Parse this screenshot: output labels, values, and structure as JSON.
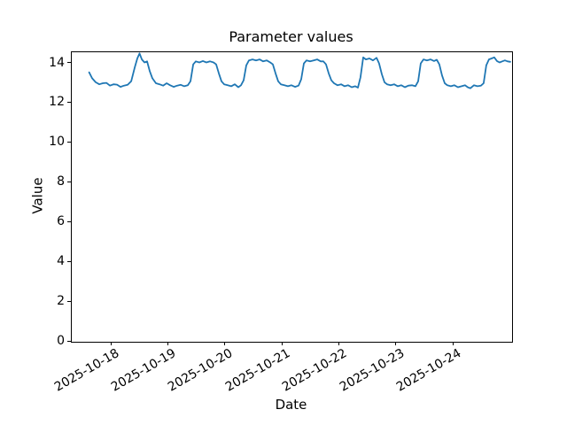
{
  "chart_data": {
    "type": "line",
    "title": "Parameter values",
    "xlabel": "Date",
    "ylabel": "Value",
    "grid": false,
    "legend": null,
    "line_color": "#1f77b4",
    "background_color": "#ffffff",
    "spine_color": "#000000",
    "x_unit": "days since 2025-10-18 00:00",
    "xlim": [
      -0.7,
      7.02
    ],
    "ylim": [
      0,
      14.56
    ],
    "y_ticks": [
      0,
      2,
      4,
      6,
      8,
      10,
      12,
      14
    ],
    "x_tick_positions": [
      0,
      1,
      2,
      3,
      4,
      5,
      6
    ],
    "x_tick_labels": [
      "2025-10-18",
      "2025-10-19",
      "2025-10-20",
      "2025-10-21",
      "2025-10-22",
      "2025-10-23",
      "2025-10-24"
    ],
    "series": [
      {
        "name": "parameter-values",
        "color": "#1f77b4",
        "x_days": [
          -0.396,
          -0.342,
          -0.28,
          -0.217,
          -0.155,
          -0.093,
          -0.031,
          0.031,
          0.093,
          0.155,
          0.217,
          0.28,
          0.342,
          0.404,
          0.45,
          0.489,
          0.528,
          0.575,
          0.621,
          0.668,
          0.714,
          0.776,
          0.839,
          0.901,
          0.963,
          1.025,
          1.087,
          1.149,
          1.211,
          1.273,
          1.335,
          1.382,
          1.429,
          1.475,
          1.537,
          1.599,
          1.661,
          1.724,
          1.786,
          1.832,
          1.879,
          1.925,
          1.972,
          2.034,
          2.096,
          2.158,
          2.22,
          2.267,
          2.314,
          2.36,
          2.407,
          2.469,
          2.531,
          2.593,
          2.655,
          2.717,
          2.78,
          2.826,
          2.873,
          2.919,
          2.966,
          3.028,
          3.09,
          3.152,
          3.214,
          3.276,
          3.323,
          3.369,
          3.416,
          3.478,
          3.54,
          3.602,
          3.665,
          3.711,
          3.758,
          3.804,
          3.851,
          3.898,
          3.96,
          4.022,
          4.084,
          4.146,
          4.208,
          4.27,
          4.317,
          4.363,
          4.41,
          4.457,
          4.519,
          4.581,
          4.643,
          4.689,
          4.736,
          4.783,
          4.829,
          4.891,
          4.953,
          5.016,
          5.078,
          5.14,
          5.202,
          5.264,
          5.326,
          5.373,
          5.419,
          5.466,
          5.528,
          5.59,
          5.652,
          5.699,
          5.745,
          5.792,
          5.839,
          5.885,
          5.947,
          6.009,
          6.071,
          6.134,
          6.196,
          6.242,
          6.289,
          6.351,
          6.413,
          6.475,
          6.522,
          6.568,
          6.615,
          6.661,
          6.708,
          6.755,
          6.801,
          6.848,
          6.894,
          6.941,
          6.988
        ],
        "values": [
          13.55,
          13.25,
          13.05,
          12.95,
          13.0,
          13.02,
          12.88,
          12.95,
          12.93,
          12.82,
          12.88,
          12.92,
          13.1,
          13.8,
          14.25,
          14.5,
          14.2,
          14.05,
          14.1,
          13.6,
          13.25,
          13.0,
          12.95,
          12.88,
          13.0,
          12.9,
          12.82,
          12.88,
          12.92,
          12.85,
          12.9,
          13.1,
          13.95,
          14.1,
          14.05,
          14.12,
          14.05,
          14.1,
          14.05,
          13.95,
          13.5,
          13.1,
          12.95,
          12.9,
          12.85,
          12.95,
          12.8,
          12.9,
          13.15,
          13.9,
          14.15,
          14.2,
          14.15,
          14.2,
          14.1,
          14.15,
          14.05,
          13.95,
          13.5,
          13.1,
          12.95,
          12.9,
          12.85,
          12.9,
          12.82,
          12.88,
          13.2,
          14.0,
          14.15,
          14.1,
          14.15,
          14.2,
          14.1,
          14.1,
          13.95,
          13.5,
          13.15,
          13.0,
          12.9,
          12.95,
          12.85,
          12.9,
          12.8,
          12.85,
          12.78,
          13.3,
          14.3,
          14.2,
          14.25,
          14.15,
          14.28,
          14.0,
          13.45,
          13.05,
          12.95,
          12.9,
          12.95,
          12.85,
          12.9,
          12.8,
          12.88,
          12.9,
          12.85,
          13.1,
          14.0,
          14.2,
          14.15,
          14.2,
          14.12,
          14.18,
          13.95,
          13.4,
          13.0,
          12.9,
          12.85,
          12.9,
          12.8,
          12.85,
          12.9,
          12.8,
          12.75,
          12.9,
          12.85,
          12.88,
          13.0,
          13.9,
          14.2,
          14.25,
          14.3,
          14.12,
          14.05,
          14.1,
          14.15,
          14.1,
          14.08
        ]
      }
    ]
  }
}
